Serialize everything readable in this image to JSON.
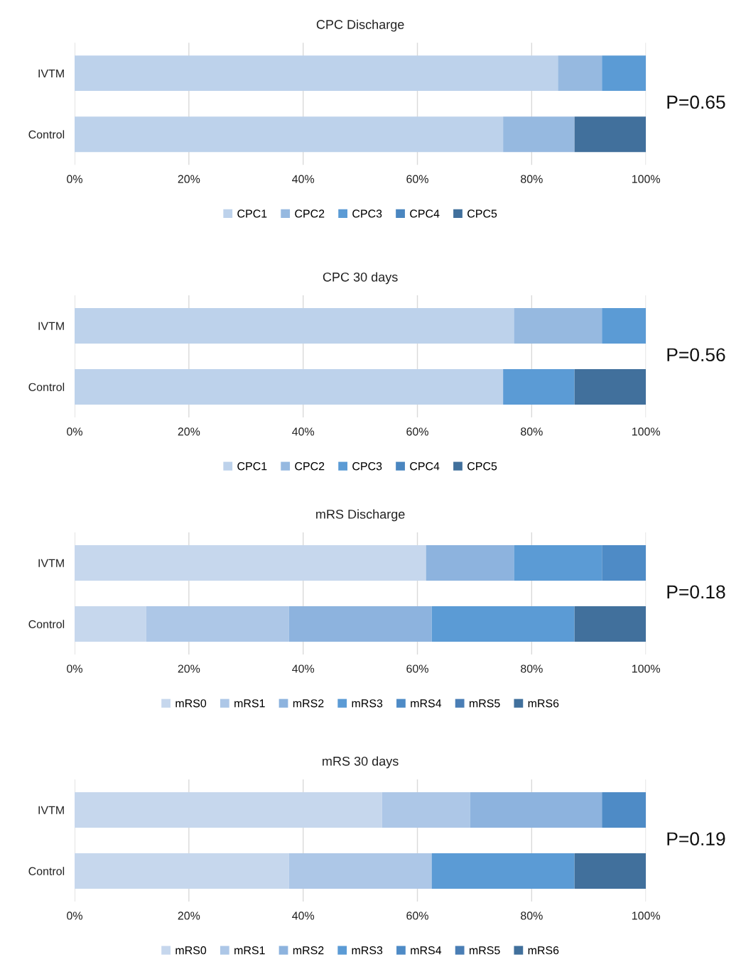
{
  "chart_data": [
    {
      "type": "bar",
      "orientation": "horizontal",
      "stacked": true,
      "title": "CPC Discharge",
      "categories": [
        "IVTM",
        "Control"
      ],
      "series": [
        {
          "name": "CPC1",
          "color": "#bdd2eb",
          "values": [
            84.6,
            75
          ]
        },
        {
          "name": "CPC2",
          "color": "#96b9e0",
          "values": [
            7.7,
            12.5
          ]
        },
        {
          "name": "CPC3",
          "color": "#5b9bd5",
          "values": [
            7.7,
            0
          ]
        },
        {
          "name": "CPC4",
          "color": "#4a86c0",
          "values": [
            0,
            0
          ]
        },
        {
          "name": "CPC5",
          "color": "#41709c",
          "values": [
            0,
            12.5
          ]
        }
      ],
      "xlim": [
        0,
        100
      ],
      "xticks": [
        {
          "value": 0,
          "label": "0%"
        },
        {
          "value": 20,
          "label": "20%"
        },
        {
          "value": 40,
          "label": "40%"
        },
        {
          "value": 60,
          "label": "60%"
        },
        {
          "value": 80,
          "label": "80%"
        },
        {
          "value": 100,
          "label": "100%"
        }
      ],
      "grid": "x",
      "legend": "bottom",
      "annotations": [
        "P=0.65"
      ]
    },
    {
      "type": "bar",
      "orientation": "horizontal",
      "stacked": true,
      "title": "CPC 30 days",
      "categories": [
        "IVTM",
        "Control"
      ],
      "series": [
        {
          "name": "CPC1",
          "color": "#bdd2eb",
          "values": [
            76.9,
            75
          ]
        },
        {
          "name": "CPC2",
          "color": "#96b9e0",
          "values": [
            15.4,
            0
          ]
        },
        {
          "name": "CPC3",
          "color": "#5b9bd5",
          "values": [
            7.7,
            12.5
          ]
        },
        {
          "name": "CPC4",
          "color": "#4a86c0",
          "values": [
            0,
            0
          ]
        },
        {
          "name": "CPC5",
          "color": "#41709c",
          "values": [
            0,
            12.5
          ]
        }
      ],
      "xlim": [
        0,
        100
      ],
      "xticks": [
        {
          "value": 0,
          "label": "0%"
        },
        {
          "value": 20,
          "label": "20%"
        },
        {
          "value": 40,
          "label": "40%"
        },
        {
          "value": 60,
          "label": "60%"
        },
        {
          "value": 80,
          "label": "80%"
        },
        {
          "value": 100,
          "label": "100%"
        }
      ],
      "grid": "x",
      "legend": "bottom",
      "annotations": [
        "P=0.56"
      ]
    },
    {
      "type": "bar",
      "orientation": "horizontal",
      "stacked": true,
      "title": "mRS Discharge",
      "categories": [
        "IVTM",
        "Control"
      ],
      "series": [
        {
          "name": "mRS0",
          "color": "#c6d7ed",
          "values": [
            61.5,
            12.5
          ]
        },
        {
          "name": "mRS1",
          "color": "#adc7e7",
          "values": [
            0,
            25
          ]
        },
        {
          "name": "mRS2",
          "color": "#8db3de",
          "values": [
            15.4,
            25
          ]
        },
        {
          "name": "mRS3",
          "color": "#5b9bd5",
          "values": [
            15.4,
            25
          ]
        },
        {
          "name": "mRS4",
          "color": "#4e8bc6",
          "values": [
            7.7,
            0
          ]
        },
        {
          "name": "mRS5",
          "color": "#4a7eb5",
          "values": [
            0,
            0
          ]
        },
        {
          "name": "mRS6",
          "color": "#41709c",
          "values": [
            0,
            12.5
          ]
        }
      ],
      "xlim": [
        0,
        100
      ],
      "xticks": [
        {
          "value": 0,
          "label": "0%"
        },
        {
          "value": 20,
          "label": "20%"
        },
        {
          "value": 40,
          "label": "40%"
        },
        {
          "value": 60,
          "label": "60%"
        },
        {
          "value": 80,
          "label": "80%"
        },
        {
          "value": 100,
          "label": "100%"
        }
      ],
      "grid": "x",
      "legend": "bottom",
      "annotations": [
        "P=0.18"
      ]
    },
    {
      "type": "bar",
      "orientation": "horizontal",
      "stacked": true,
      "title": "mRS 30 days",
      "categories": [
        "IVTM",
        "Control"
      ],
      "series": [
        {
          "name": "mRS0",
          "color": "#c6d7ed",
          "values": [
            53.8,
            37.5
          ]
        },
        {
          "name": "mRS1",
          "color": "#adc7e7",
          "values": [
            15.4,
            25
          ]
        },
        {
          "name": "mRS2",
          "color": "#8db3de",
          "values": [
            23.1,
            0
          ]
        },
        {
          "name": "mRS3",
          "color": "#5b9bd5",
          "values": [
            0,
            25
          ]
        },
        {
          "name": "mRS4",
          "color": "#4e8bc6",
          "values": [
            7.7,
            0
          ]
        },
        {
          "name": "mRS5",
          "color": "#4a7eb5",
          "values": [
            0,
            0
          ]
        },
        {
          "name": "mRS6",
          "color": "#41709c",
          "values": [
            0,
            12.5
          ]
        }
      ],
      "xlim": [
        0,
        100
      ],
      "xticks": [
        {
          "value": 0,
          "label": "0%"
        },
        {
          "value": 20,
          "label": "20%"
        },
        {
          "value": 40,
          "label": "40%"
        },
        {
          "value": 60,
          "label": "60%"
        },
        {
          "value": 80,
          "label": "80%"
        },
        {
          "value": 100,
          "label": "100%"
        }
      ],
      "grid": "x",
      "legend": "bottom",
      "annotations": [
        "P=0.19"
      ]
    }
  ]
}
